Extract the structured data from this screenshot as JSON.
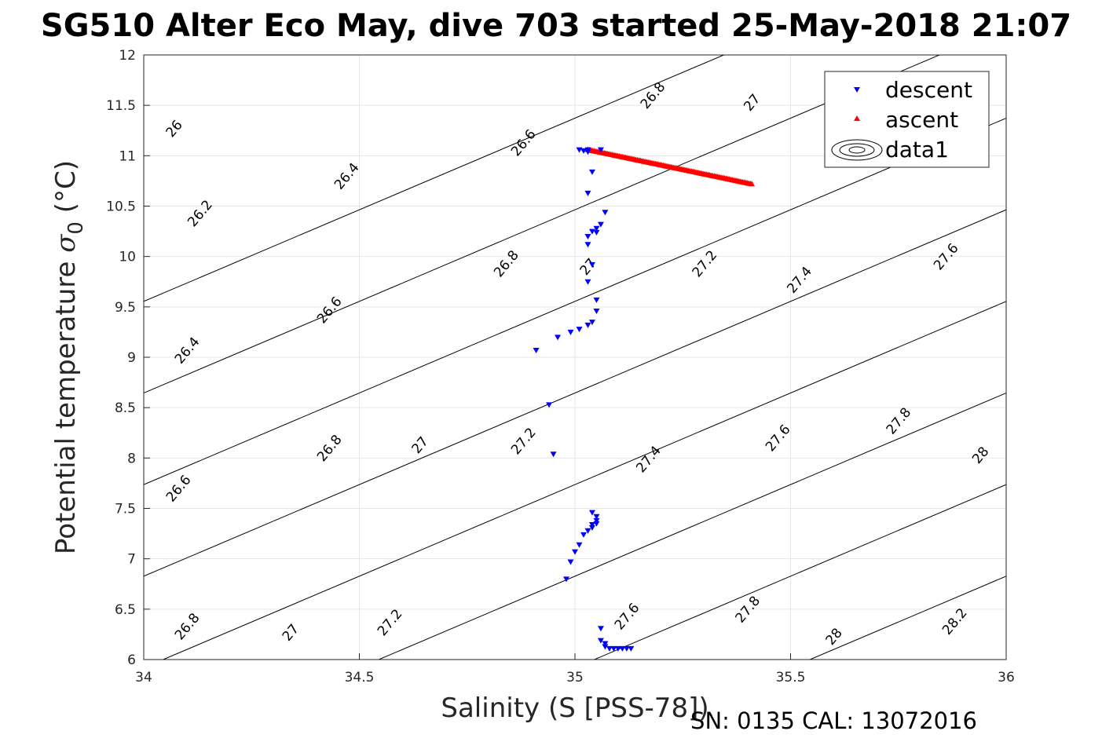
{
  "chart_data": {
    "type": "scatter",
    "title": "SG510 Alter Eco May, dive 703 started 25-May-2018 21:07",
    "xlabel": "Salinity (S [PSS-78])",
    "ylabel_main": "Potential temperature ",
    "ylabel_sigma": "σ",
    "ylabel_sub": "0",
    "ylabel_unit": " (°C)",
    "xlim": [
      34,
      36
    ],
    "ylim": [
      6,
      12
    ],
    "xticks": [
      34,
      34.5,
      35,
      35.5,
      36
    ],
    "xtick_labels": [
      "34",
      "34.5",
      "35",
      "35.5",
      "36"
    ],
    "yticks": [
      6,
      6.5,
      7,
      7.5,
      8,
      8.5,
      9,
      9.5,
      10,
      10.5,
      11,
      11.5,
      12
    ],
    "ytick_labels": [
      "6",
      "6.5",
      "7",
      "7.5",
      "8",
      "8.5",
      "9",
      "9.5",
      "10",
      "10.5",
      "11",
      "11.5",
      "12"
    ],
    "grid": true,
    "legend_position": "top-right",
    "contour_levels": [
      26,
      26.2,
      26.4,
      26.6,
      26.8,
      27,
      27.2,
      27.4,
      27.6,
      27.8,
      28,
      28.2
    ],
    "contour_labels": [
      {
        "text": "26",
        "x": 34.07,
        "y": 11.27
      },
      {
        "text": "26.2",
        "x": 34.13,
        "y": 10.43
      },
      {
        "text": "26.4",
        "x": 34.1,
        "y": 9.07
      },
      {
        "text": "26.6",
        "x": 34.08,
        "y": 7.7
      },
      {
        "text": "26.8",
        "x": 34.1,
        "y": 6.33
      },
      {
        "text": "26.4",
        "x": 34.47,
        "y": 10.8
      },
      {
        "text": "26.6",
        "x": 34.43,
        "y": 9.47
      },
      {
        "text": "26.8",
        "x": 34.43,
        "y": 8.1
      },
      {
        "text": "27",
        "x": 34.34,
        "y": 6.27
      },
      {
        "text": "26.6",
        "x": 34.88,
        "y": 11.13
      },
      {
        "text": "26.8",
        "x": 34.84,
        "y": 9.93
      },
      {
        "text": "27",
        "x": 34.64,
        "y": 8.13
      },
      {
        "text": "27.2",
        "x": 34.57,
        "y": 6.37
      },
      {
        "text": "26.8",
        "x": 35.18,
        "y": 11.6
      },
      {
        "text": "27",
        "x": 35.03,
        "y": 9.9
      },
      {
        "text": "27.2",
        "x": 34.88,
        "y": 8.17
      },
      {
        "text": "27",
        "x": 35.41,
        "y": 11.53
      },
      {
        "text": "27.2",
        "x": 35.3,
        "y": 9.93
      },
      {
        "text": "27.4",
        "x": 35.17,
        "y": 7.99
      },
      {
        "text": "27.6",
        "x": 35.12,
        "y": 6.43
      },
      {
        "text": "27.4",
        "x": 35.52,
        "y": 9.77
      },
      {
        "text": "27.6",
        "x": 35.47,
        "y": 8.2
      },
      {
        "text": "27.8",
        "x": 35.4,
        "y": 6.5
      },
      {
        "text": "27.6",
        "x": 35.86,
        "y": 10.0
      },
      {
        "text": "27.8",
        "x": 35.75,
        "y": 8.37
      },
      {
        "text": "28",
        "x": 35.6,
        "y": 6.23
      },
      {
        "text": "28",
        "x": 35.94,
        "y": 8.03
      },
      {
        "text": "28.2",
        "x": 35.88,
        "y": 6.38
      }
    ],
    "series": [
      {
        "name": "descent",
        "marker": "triangle-down",
        "color": "#0000ff",
        "points": [
          [
            35.01,
            11.06
          ],
          [
            35.03,
            11.06
          ],
          [
            35.06,
            11.06
          ],
          [
            35.02,
            11.05
          ],
          [
            35.03,
            11.04
          ],
          [
            35.04,
            10.84
          ],
          [
            35.03,
            10.63
          ],
          [
            35.07,
            10.44
          ],
          [
            35.06,
            10.32
          ],
          [
            35.05,
            10.28
          ],
          [
            35.04,
            10.25
          ],
          [
            35.05,
            10.24
          ],
          [
            35.03,
            10.2
          ],
          [
            35.03,
            10.12
          ],
          [
            35.04,
            9.92
          ],
          [
            35.03,
            9.75
          ],
          [
            35.05,
            9.57
          ],
          [
            35.05,
            9.46
          ],
          [
            35.04,
            9.35
          ],
          [
            35.03,
            9.32
          ],
          [
            35.01,
            9.28
          ],
          [
            34.99,
            9.25
          ],
          [
            34.96,
            9.2
          ],
          [
            34.91,
            9.07
          ],
          [
            34.94,
            8.53
          ],
          [
            34.95,
            8.04
          ],
          [
            35.04,
            7.46
          ],
          [
            35.05,
            7.42
          ],
          [
            35.05,
            7.38
          ],
          [
            35.04,
            7.34
          ],
          [
            35.04,
            7.31
          ],
          [
            35.05,
            7.35
          ],
          [
            35.03,
            7.28
          ],
          [
            35.02,
            7.24
          ],
          [
            35.01,
            7.14
          ],
          [
            35.0,
            7.07
          ],
          [
            34.99,
            6.97
          ],
          [
            34.98,
            6.8
          ],
          [
            35.06,
            6.31
          ],
          [
            35.06,
            6.19
          ],
          [
            35.07,
            6.16
          ],
          [
            35.07,
            6.13
          ],
          [
            35.08,
            6.11
          ],
          [
            35.09,
            6.11
          ],
          [
            35.1,
            6.11
          ],
          [
            35.11,
            6.11
          ],
          [
            35.12,
            6.11
          ],
          [
            35.13,
            6.11
          ]
        ]
      },
      {
        "name": "ascent",
        "marker": "triangle-up",
        "color": "#ff0000",
        "line_from": [
          35.03,
          11.06
        ],
        "line_to": [
          35.41,
          10.72
        ],
        "point_count": 110
      },
      {
        "name": "data1",
        "marker": "contour-icon",
        "color": "#000000"
      }
    ],
    "footer": "SN: 0135  CAL: 13072016"
  }
}
